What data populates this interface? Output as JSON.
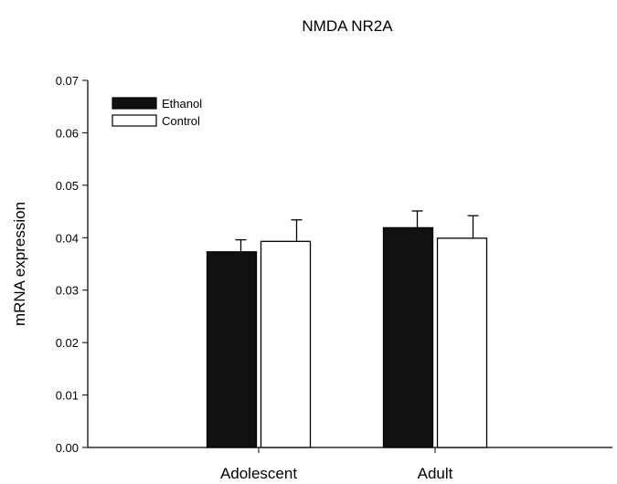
{
  "chart_data": {
    "type": "bar",
    "title": "NMDA NR2A",
    "xlabel": "",
    "ylabel": "mRNA expression",
    "categories": [
      "Adolescent",
      "Adult"
    ],
    "ylim": [
      0,
      0.07
    ],
    "yticks": [
      "0.00",
      "0.01",
      "0.02",
      "0.03",
      "0.04",
      "0.05",
      "0.06",
      "0.07"
    ],
    "series": [
      {
        "name": "Ethanol",
        "values": [
          0.0373,
          0.0419
        ],
        "errors": [
          0.0023,
          0.0032
        ],
        "color": "#111111"
      },
      {
        "name": "Control",
        "values": [
          0.0393,
          0.0399
        ],
        "errors": [
          0.0041,
          0.0043
        ],
        "color": "#ffffff"
      }
    ],
    "legend": "top-left",
    "grid": false
  }
}
